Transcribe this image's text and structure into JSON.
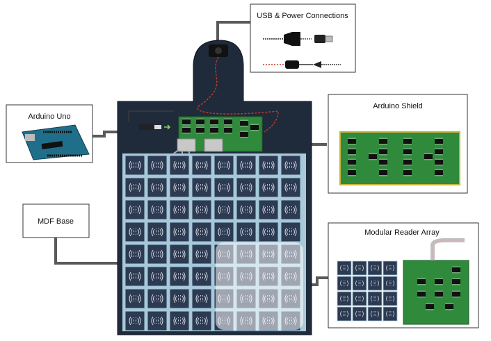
{
  "labels": {
    "usb_power": "USB & Power Connections",
    "arduino_uno": "Arduino Uno",
    "arduino_shield": "Arduino Shield",
    "mdf_base": "MDF Base",
    "modular_reader_array": "Modular Reader Array"
  },
  "colors": {
    "board": "#1f2a3a",
    "tile": "#2c3a52",
    "tile_border": "#9ec7da",
    "connector_line": "#555555",
    "pcb_green": "#2f8a3c",
    "cable_red": "#c0392b"
  },
  "reader_grid": {
    "rows": 8,
    "cols": 8,
    "highlighted_block": "bottom-right 4x4"
  },
  "mini_array": {
    "rows": 4,
    "cols": 4
  }
}
